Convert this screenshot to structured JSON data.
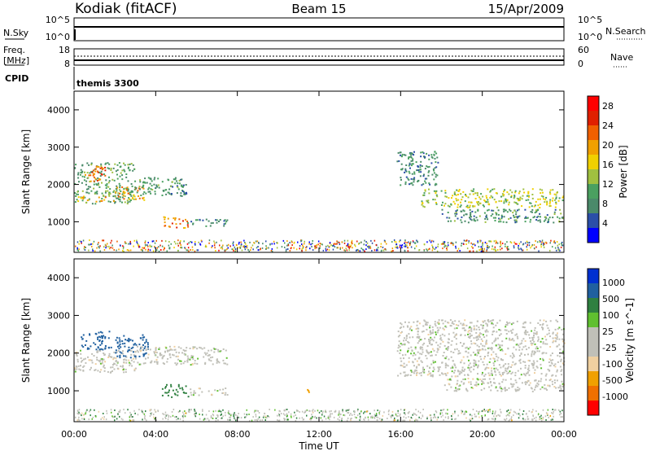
{
  "header": {
    "station": "Kodiak (fitACF)",
    "beam": "Beam 15",
    "date": "15/Apr/2009"
  },
  "aux_panels": {
    "nsky_label": "N.Sky",
    "nsearch_label": "N.Search",
    "nsky_ticks": [
      "10^5",
      "10^0"
    ],
    "nsearch_ticks": [
      "10^5",
      "10^0"
    ],
    "freq_label": "Freq.",
    "freq_unit": "[MHz]",
    "freq_ticks": [
      "18",
      "8"
    ],
    "nave_label": "Nave",
    "nave_ticks": [
      "60",
      "0"
    ],
    "cpid_label": "CPID",
    "cpid_value": "themis 3300"
  },
  "colors": {
    "power": [
      "#0000ff",
      "#2b4fa8",
      "#4a8a6a",
      "#4aa060",
      "#a0c040",
      "#f0d000",
      "#f0a000",
      "#f06000",
      "#e02000",
      "#ff0000"
    ],
    "velocity": [
      "#ff0000",
      "#f07000",
      "#f0a000",
      "#f0d0a0",
      "#c0c0b8",
      "#c0c0b8",
      "#60c030",
      "#2f8040",
      "#2060a0",
      "#0030d0"
    ],
    "ground_scatter": "#c0c0b8"
  },
  "chart_data": [
    {
      "type": "heatmap",
      "name": "power",
      "xlabel": "Time UT",
      "ylabel": "Slant Range [km]",
      "x_ticks": [
        "00:00",
        "04:00",
        "08:00",
        "12:00",
        "16:00",
        "20:00",
        "00:00"
      ],
      "xlim": [
        0,
        24
      ],
      "ylim": [
        180,
        4500
      ],
      "y_ticks": [
        1000,
        2000,
        3000,
        4000
      ],
      "colorbar_label": "Power [dB]",
      "colorbar_ticks": [
        4,
        8,
        12,
        16,
        20,
        24,
        28
      ],
      "clim": [
        0,
        30
      ],
      "echo_regions": [
        {
          "t0": 0.0,
          "t1": 3.0,
          "r0": 1500,
          "r1": 2600,
          "level": 10
        },
        {
          "t0": 0.5,
          "t1": 1.5,
          "r0": 2100,
          "r1": 2500,
          "level": 22
        },
        {
          "t0": 2.0,
          "t1": 3.4,
          "r0": 1600,
          "r1": 1950,
          "level": 20
        },
        {
          "t0": 0.0,
          "t1": 2.0,
          "r0": 1550,
          "r1": 1700,
          "level": 19
        },
        {
          "t0": 3.0,
          "t1": 5.5,
          "r0": 1700,
          "r1": 2200,
          "level": 9
        },
        {
          "t0": 4.3,
          "t1": 5.6,
          "r0": 850,
          "r1": 1150,
          "level": 21
        },
        {
          "t0": 5.5,
          "t1": 7.5,
          "r0": 900,
          "r1": 1100,
          "level": 8
        },
        {
          "t0": 15.8,
          "t1": 17.8,
          "r0": 2000,
          "r1": 2900,
          "level": 8
        },
        {
          "t0": 17.0,
          "t1": 24.0,
          "r0": 1400,
          "r1": 1900,
          "level": 14
        },
        {
          "t0": 18.0,
          "t1": 24.0,
          "r0": 1000,
          "r1": 1350,
          "level": 9
        }
      ]
    },
    {
      "type": "heatmap",
      "name": "velocity",
      "xlabel": "Time UT",
      "ylabel": "Slant Range [km]",
      "x_ticks": [
        "00:00",
        "04:00",
        "08:00",
        "12:00",
        "16:00",
        "20:00",
        "00:00"
      ],
      "xlim": [
        0,
        24
      ],
      "ylim": [
        180,
        4500
      ],
      "y_ticks": [
        1000,
        2000,
        3000,
        4000
      ],
      "colorbar_label": "Velocity [m s^-1]",
      "colorbar_ticks": [
        1000,
        500,
        100,
        25,
        -25,
        -100,
        -500,
        -1000
      ],
      "clim": [
        -1000,
        1000
      ],
      "echo_regions": [
        {
          "t0": 0.0,
          "t1": 3.0,
          "r0": 1500,
          "r1": 2100,
          "v": 0
        },
        {
          "t0": 0.3,
          "t1": 1.8,
          "r0": 2100,
          "r1": 2600,
          "v": 800
        },
        {
          "t0": 2.0,
          "t1": 3.6,
          "r0": 1900,
          "r1": 2500,
          "v": 600
        },
        {
          "t0": 3.0,
          "t1": 7.5,
          "r0": 1700,
          "r1": 2200,
          "v": 0
        },
        {
          "t0": 4.3,
          "t1": 5.6,
          "r0": 850,
          "r1": 1200,
          "v": 180
        },
        {
          "t0": 5.6,
          "t1": 7.5,
          "r0": 900,
          "r1": 1100,
          "v": 0
        },
        {
          "t0": 11.3,
          "t1": 11.7,
          "r0": 950,
          "r1": 1050,
          "v": -200
        },
        {
          "t0": 15.8,
          "t1": 24.0,
          "r0": 1400,
          "r1": 2900,
          "v": 0
        },
        {
          "t0": 18.0,
          "t1": 24.0,
          "r0": 1000,
          "r1": 1350,
          "v": 0
        }
      ]
    }
  ]
}
